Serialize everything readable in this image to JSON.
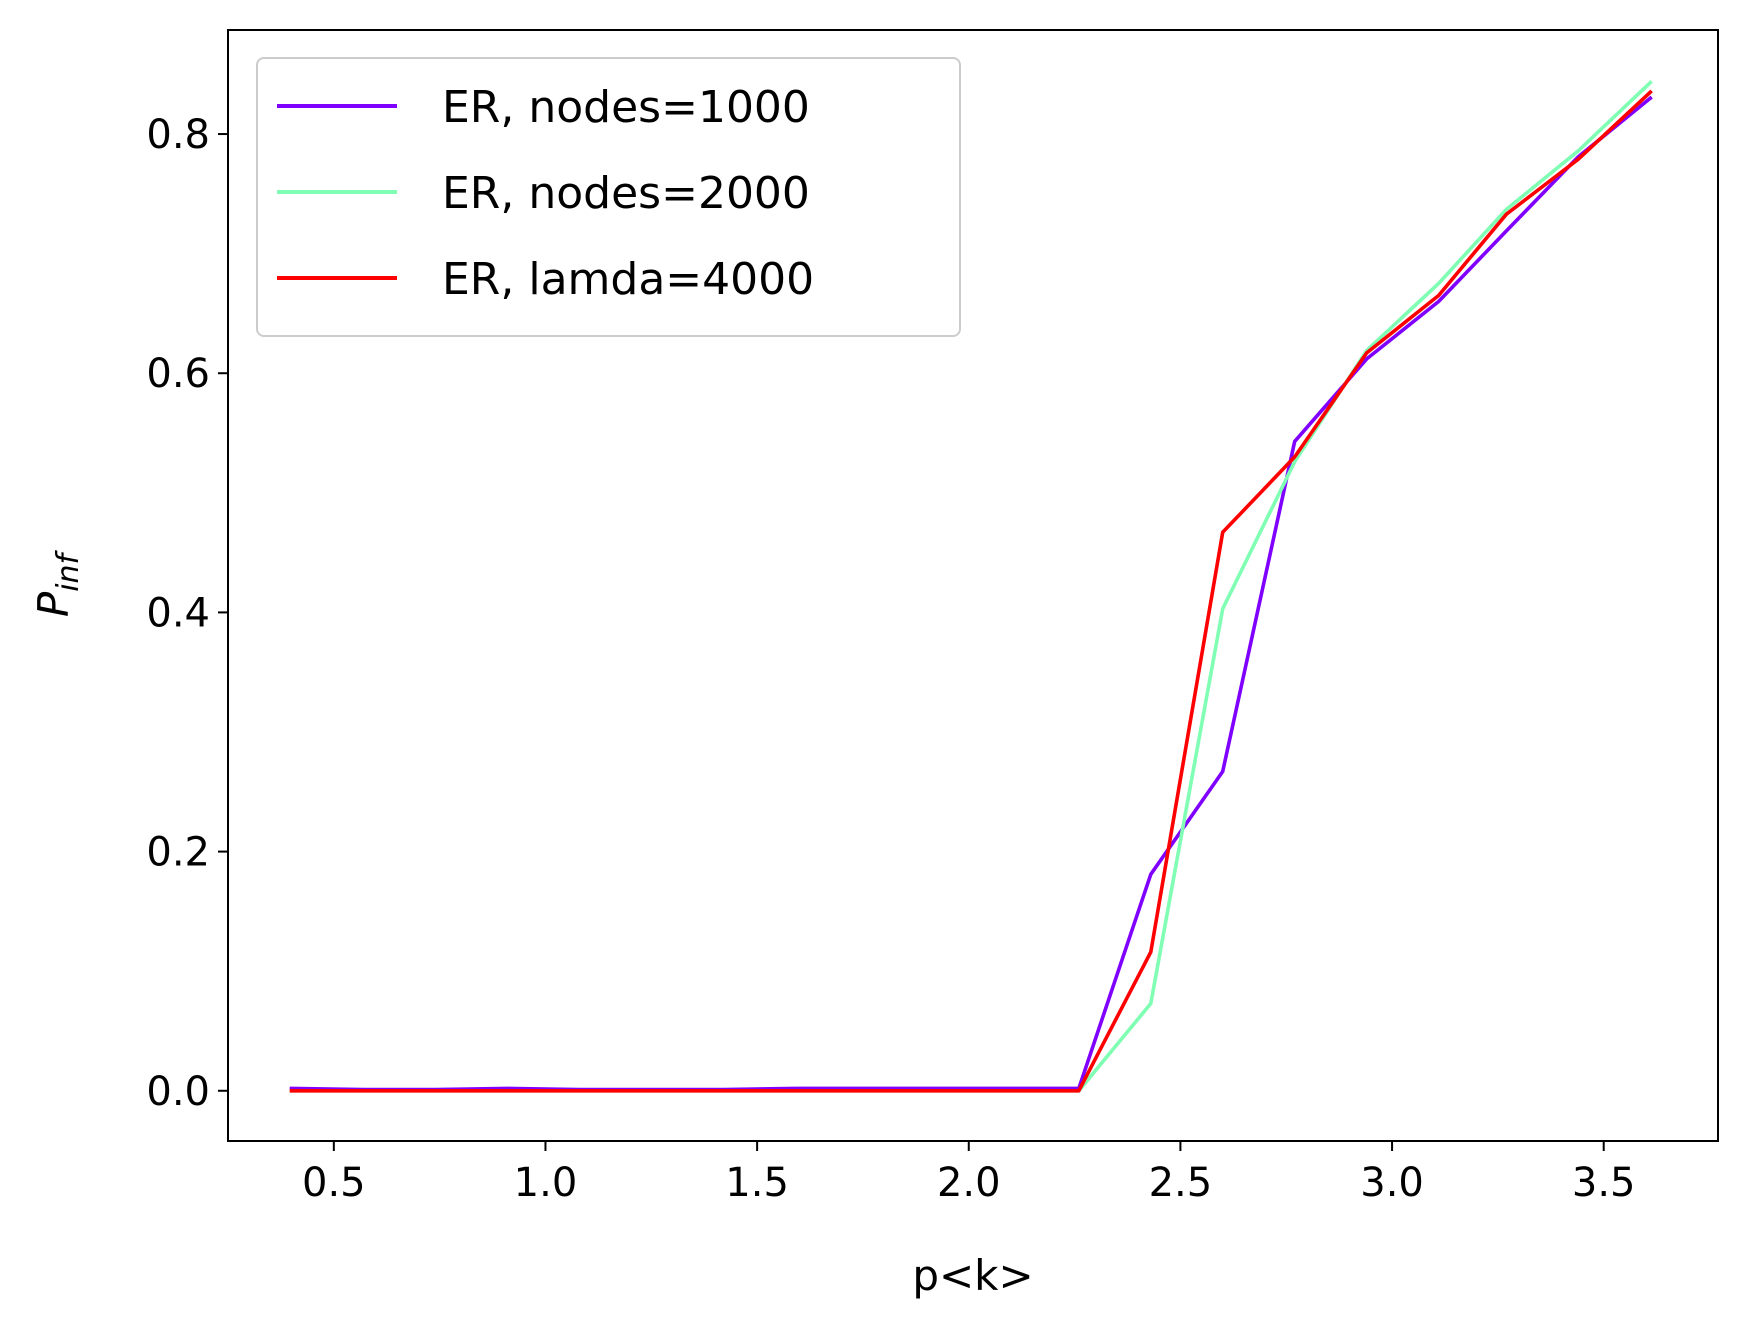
{
  "chart_data": {
    "type": "line",
    "title": "",
    "xlabel": "p<k>",
    "ylabel": {
      "base": "P",
      "sub": "inf"
    },
    "xlim": [
      0.25,
      3.77
    ],
    "ylim": [
      -0.042,
      0.887
    ],
    "xticks": [
      0.5,
      1.0,
      1.5,
      2.0,
      2.5,
      3.0,
      3.5
    ],
    "xtick_labels": [
      "0.5",
      "1.0",
      "1.5",
      "2.0",
      "2.5",
      "3.0",
      "3.5"
    ],
    "yticks": [
      0.0,
      0.2,
      0.4,
      0.6,
      0.8
    ],
    "ytick_labels": [
      "0.0",
      "0.2",
      "0.4",
      "0.6",
      "0.8"
    ],
    "grid": false,
    "legend_position": "top-left",
    "x": [
      0.4,
      0.57,
      0.74,
      0.91,
      1.08,
      1.25,
      1.42,
      1.59,
      1.76,
      1.93,
      2.1,
      2.26,
      2.43,
      2.6,
      2.77,
      2.94,
      3.11,
      3.27,
      3.44,
      3.61
    ],
    "series": [
      {
        "name": "ER, nodes=1000",
        "color": "#8000ff",
        "values": [
          0.002,
          0.001,
          0.001,
          0.002,
          0.001,
          0.001,
          0.001,
          0.002,
          0.002,
          0.002,
          0.002,
          0.002,
          0.181,
          0.267,
          0.543,
          0.612,
          0.66,
          0.719,
          0.781,
          0.83
        ]
      },
      {
        "name": "ER, nodes=2000",
        "color": "#80ffb4",
        "values": [
          0.0,
          0.0,
          0.0,
          0.0,
          0.0,
          0.0,
          0.0,
          0.0,
          0.0,
          0.0,
          0.0,
          0.0,
          0.073,
          0.403,
          0.526,
          0.619,
          0.675,
          0.737,
          0.786,
          0.843
        ]
      },
      {
        "name": "ER, lamda=4000",
        "color": "#ff0000",
        "values": [
          0.0,
          0.0,
          0.0,
          0.0,
          0.0,
          0.0,
          0.0,
          0.0,
          0.0,
          0.0,
          0.0,
          0.0,
          0.116,
          0.467,
          0.53,
          0.617,
          0.665,
          0.733,
          0.779,
          0.835
        ]
      }
    ]
  }
}
